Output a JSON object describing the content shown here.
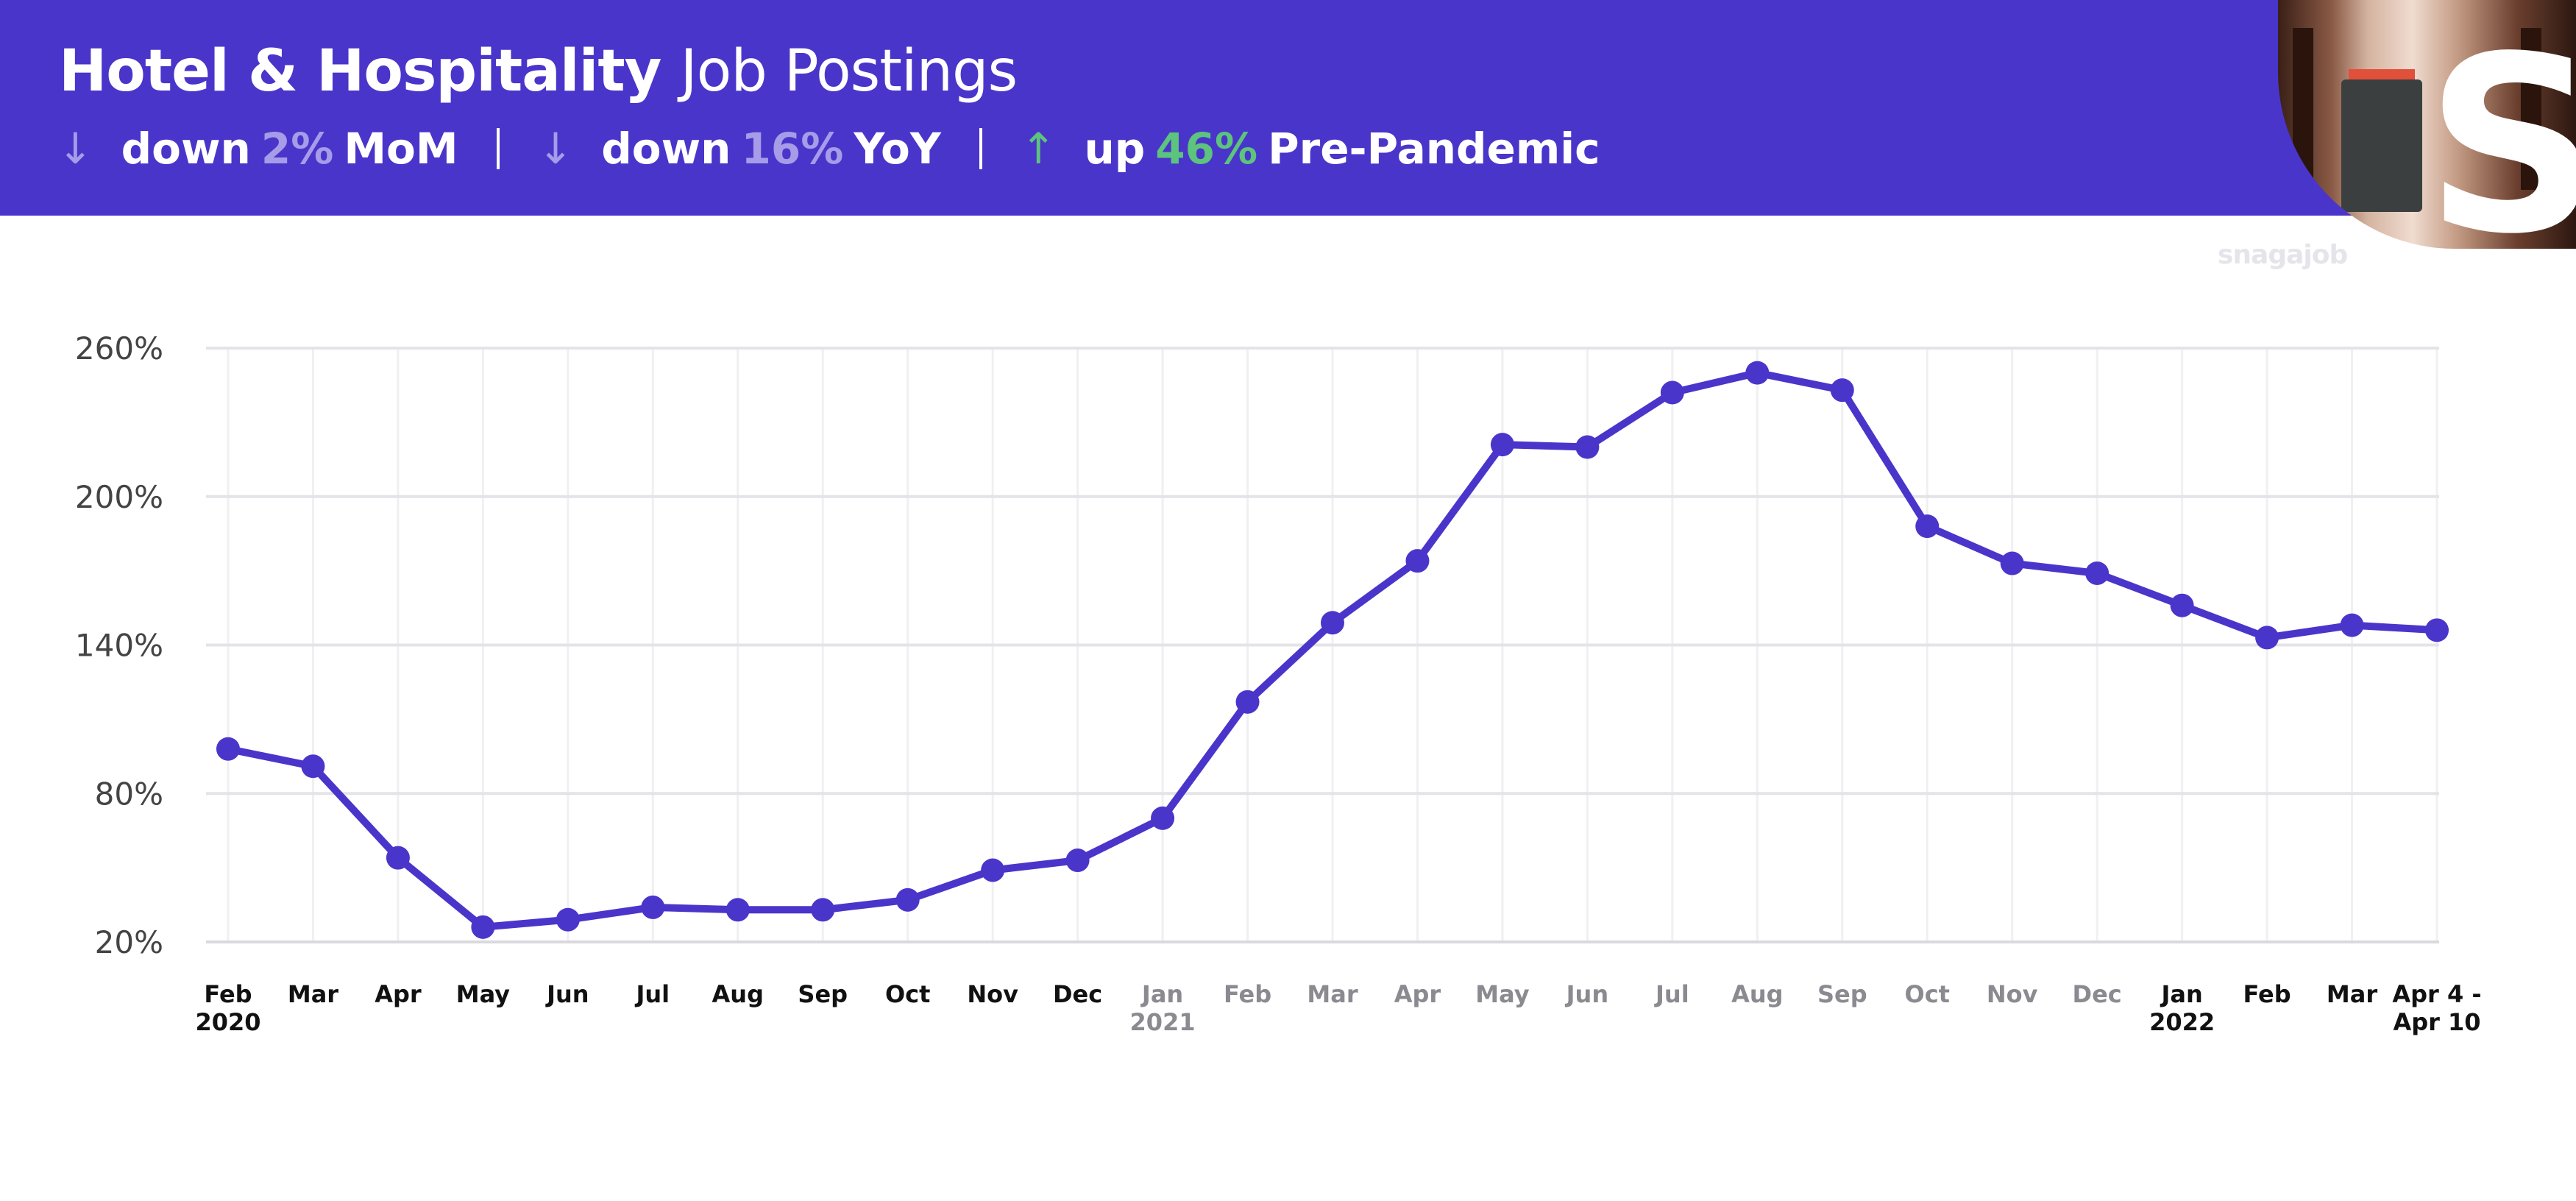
{
  "header": {
    "title_bold": "Hotel & Hospitality",
    "title_light": "Job Postings",
    "stats": [
      {
        "arrow": "↓",
        "direction": "down",
        "prefix": "down",
        "value": "2%",
        "suffix": "MoM"
      },
      {
        "arrow": "↓",
        "direction": "down",
        "prefix": "down",
        "value": "16%",
        "suffix": "YoY"
      },
      {
        "arrow": "↑",
        "direction": "up",
        "prefix": "up",
        "value": "46%",
        "suffix": "Pre-Pandemic"
      }
    ],
    "brand": "snagajob",
    "logo_letter": "S"
  },
  "colors": {
    "banner": "#4a35cb",
    "line": "#4a35cb",
    "down": "#a69ce8",
    "up": "#5cc47d"
  },
  "chart_data": {
    "type": "line",
    "ylim": [
      20,
      260
    ],
    "y_ticks": [
      20,
      80,
      140,
      200,
      260
    ],
    "y_tick_labels": [
      "20%",
      "80%",
      "140%",
      "200%",
      "260%"
    ],
    "grid": true,
    "categories": [
      {
        "label": "Feb",
        "sub": "2020",
        "muted": false
      },
      {
        "label": "Mar",
        "sub": "",
        "muted": false
      },
      {
        "label": "Apr",
        "sub": "",
        "muted": false
      },
      {
        "label": "May",
        "sub": "",
        "muted": false
      },
      {
        "label": "Jun",
        "sub": "",
        "muted": false
      },
      {
        "label": "Jul",
        "sub": "",
        "muted": false
      },
      {
        "label": "Aug",
        "sub": "",
        "muted": false
      },
      {
        "label": "Sep",
        "sub": "",
        "muted": false
      },
      {
        "label": "Oct",
        "sub": "",
        "muted": false
      },
      {
        "label": "Nov",
        "sub": "",
        "muted": false
      },
      {
        "label": "Dec",
        "sub": "",
        "muted": false
      },
      {
        "label": "Jan",
        "sub": "2021",
        "muted": true
      },
      {
        "label": "Feb",
        "sub": "",
        "muted": true
      },
      {
        "label": "Mar",
        "sub": "",
        "muted": true
      },
      {
        "label": "Apr",
        "sub": "",
        "muted": true
      },
      {
        "label": "May",
        "sub": "",
        "muted": true
      },
      {
        "label": "Jun",
        "sub": "",
        "muted": true
      },
      {
        "label": "Jul",
        "sub": "",
        "muted": true
      },
      {
        "label": "Aug",
        "sub": "",
        "muted": true
      },
      {
        "label": "Sep",
        "sub": "",
        "muted": true
      },
      {
        "label": "Oct",
        "sub": "",
        "muted": true
      },
      {
        "label": "Nov",
        "sub": "",
        "muted": true
      },
      {
        "label": "Dec",
        "sub": "",
        "muted": true
      },
      {
        "label": "Jan",
        "sub": "2022",
        "muted": false
      },
      {
        "label": "Feb",
        "sub": "",
        "muted": false
      },
      {
        "label": "Mar",
        "sub": "",
        "muted": false
      },
      {
        "label": "Apr 4 -",
        "sub": "Apr 10",
        "muted": false
      }
    ],
    "values": [
      98,
      91,
      54,
      26,
      29,
      34,
      33,
      33,
      37,
      49,
      53,
      70,
      117,
      149,
      174,
      221,
      220,
      242,
      250,
      243,
      188,
      173,
      169,
      156,
      143,
      148,
      146
    ]
  }
}
